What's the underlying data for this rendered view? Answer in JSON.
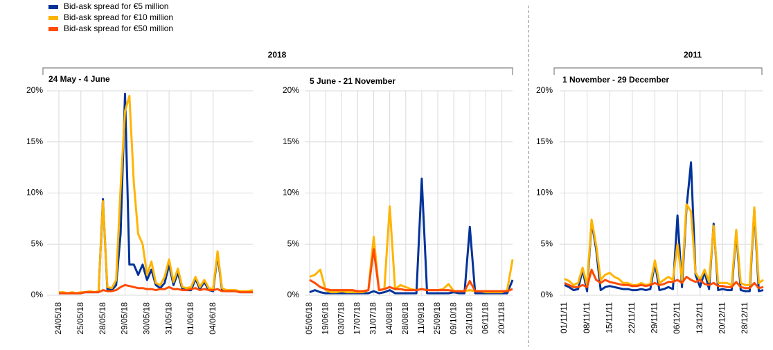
{
  "groups": [
    {
      "label": "2018"
    },
    {
      "label": "2011"
    }
  ],
  "chart_data": [
    {
      "type": "line",
      "title": "24 May - 4 June",
      "categories": [
        "24/05/18",
        null,
        null,
        null,
        null,
        "25/05/18",
        null,
        null,
        null,
        null,
        "28/05/18",
        null,
        null,
        null,
        null,
        "29/05/18",
        null,
        null,
        null,
        null,
        "30/05/18",
        null,
        null,
        null,
        null,
        "31/05/18",
        null,
        null,
        null,
        null,
        "01/06/18",
        null,
        null,
        null,
        null,
        "04/06/18",
        null,
        null,
        null,
        null,
        null,
        null,
        null,
        null,
        null
      ],
      "series": [
        {
          "name": "Bid-ask spread for €5 million",
          "color": "#003299",
          "values": [
            0.2,
            0.2,
            0.2,
            0.2,
            0.2,
            0.2,
            0.3,
            0.3,
            0.3,
            0.3,
            9.4,
            0.6,
            0.5,
            1,
            6,
            19.7,
            3,
            3,
            2,
            3,
            1.5,
            2.5,
            1,
            0.7,
            1.2,
            3,
            1,
            2.2,
            0.6,
            0.5,
            0.5,
            1.6,
            0.6,
            1.3,
            0.5,
            0.4,
            4,
            0.5,
            0.4,
            0.4,
            0.4,
            0.3,
            0.3,
            0.3,
            0.3
          ]
        },
        {
          "name": "Bid-ask spread for €10 million",
          "color": "#ffb400",
          "values": [
            0.3,
            0.3,
            0.2,
            0.3,
            0.2,
            0.3,
            0.3,
            0.4,
            0.3,
            0.4,
            9.2,
            0.8,
            0.7,
            1.5,
            10.5,
            18,
            19.5,
            11,
            6,
            5,
            2,
            3.3,
            1.2,
            1,
            1.8,
            3.5,
            1.3,
            2.6,
            0.8,
            0.7,
            0.8,
            1.8,
            0.8,
            1.5,
            0.7,
            0.6,
            4.3,
            0.7,
            0.5,
            0.5,
            0.5,
            0.4,
            0.4,
            0.4,
            0.5
          ]
        },
        {
          "name": "Bid-ask spread for €50 million",
          "color": "#ff4b00",
          "values": [
            0.2,
            0.2,
            0.2,
            0.2,
            0.2,
            0.2,
            0.3,
            0.3,
            0.3,
            0.3,
            0.5,
            0.4,
            0.4,
            0.5,
            0.8,
            1,
            0.9,
            0.8,
            0.7,
            0.7,
            0.6,
            0.6,
            0.5,
            0.6,
            0.6,
            0.8,
            0.6,
            0.6,
            0.5,
            0.5,
            0.6,
            0.7,
            0.5,
            0.6,
            0.5,
            0.5,
            0.6,
            0.4,
            0.4,
            0.4,
            0.4,
            0.3,
            0.3,
            0.3,
            0.3
          ]
        }
      ],
      "ylim": [
        0,
        20
      ],
      "yticks": [
        {
          "value": 0,
          "label": "0%"
        },
        {
          "value": 5,
          "label": "5%"
        },
        {
          "value": 10,
          "label": "10%"
        },
        {
          "value": 15,
          "label": "15%"
        },
        {
          "value": 20,
          "label": "20%"
        }
      ],
      "grid": true
    },
    {
      "type": "line",
      "title": "5 June - 21 November",
      "categories": [
        "05/06/18",
        null,
        null,
        "19/06/18",
        null,
        null,
        "03/07/18",
        null,
        null,
        "17/07/18",
        null,
        null,
        "31/07/18",
        null,
        null,
        "14/08/18",
        null,
        null,
        "28/08/18",
        null,
        null,
        "11/09/18",
        null,
        null,
        "25/09/18",
        null,
        null,
        "09/10/18",
        null,
        null,
        "23/10/18",
        null,
        null,
        "06/11/18",
        null,
        null,
        "20/11/18",
        null,
        null
      ],
      "series": [
        {
          "color": "#003299",
          "values": [
            0.3,
            0.5,
            0.3,
            0.2,
            0.2,
            0.2,
            0.2,
            0.2,
            0.2,
            0.2,
            0.2,
            0.2,
            0.4,
            0.2,
            0.3,
            0.5,
            0.2,
            0.2,
            0.2,
            0.2,
            0.2,
            11.4,
            0.2,
            0.2,
            0.2,
            0.2,
            0.2,
            0.3,
            0.2,
            0.2,
            6.7,
            0.2,
            0.2,
            0.2,
            0.2,
            0.2,
            0.2,
            0.2,
            1.5
          ]
        },
        {
          "color": "#ffb400",
          "values": [
            1.8,
            2,
            2.5,
            0.5,
            0.3,
            0.3,
            0.4,
            0.3,
            0.3,
            0.3,
            0.3,
            0.5,
            5.7,
            0.5,
            0.6,
            8.7,
            0.6,
            1,
            0.8,
            0.6,
            0.5,
            0.6,
            0.5,
            0.5,
            0.5,
            0.6,
            1.1,
            0.4,
            0.4,
            0.4,
            0.5,
            0.4,
            0.4,
            0.3,
            0.3,
            0.3,
            0.3,
            0.5,
            3.5
          ]
        },
        {
          "color": "#ff4b00",
          "values": [
            1.5,
            1.2,
            0.8,
            0.6,
            0.5,
            0.5,
            0.5,
            0.5,
            0.5,
            0.4,
            0.4,
            0.5,
            4.5,
            0.5,
            0.6,
            0.8,
            0.6,
            0.6,
            0.5,
            0.5,
            0.5,
            0.6,
            0.5,
            0.5,
            0.5,
            0.5,
            0.5,
            0.4,
            0.4,
            0.4,
            1.4,
            0.4,
            0.4,
            0.4,
            0.4,
            0.4,
            0.4,
            0.4,
            0.6
          ]
        }
      ],
      "ylim": [
        0,
        20
      ],
      "yticks": [
        {
          "value": 0,
          "label": "0%"
        },
        {
          "value": 5,
          "label": "5%"
        },
        {
          "value": 10,
          "label": "10%"
        },
        {
          "value": 15,
          "label": "15%"
        },
        {
          "value": 20,
          "label": "20%"
        }
      ],
      "grid": true
    },
    {
      "type": "line",
      "title": "1 November - 29 December",
      "categories": [
        "01/11/11",
        null,
        null,
        null,
        null,
        "08/11/11",
        null,
        null,
        null,
        null,
        "15/11/11",
        null,
        null,
        null,
        null,
        "22/11/11",
        null,
        null,
        null,
        null,
        "29/11/11",
        null,
        null,
        null,
        null,
        "06/12/11",
        null,
        null,
        null,
        null,
        "13/12/11",
        null,
        null,
        null,
        null,
        "20/12/11",
        null,
        null,
        null,
        null,
        "28/12/11",
        null,
        null,
        null,
        null
      ],
      "series": [
        {
          "color": "#003299",
          "values": [
            1,
            0.8,
            0.5,
            0.6,
            2.5,
            0.4,
            7.2,
            4.5,
            0.5,
            0.8,
            0.9,
            0.8,
            0.7,
            0.6,
            0.6,
            0.5,
            0.5,
            0.6,
            0.5,
            0.6,
            3.2,
            0.5,
            0.6,
            0.8,
            0.6,
            7.8,
            0.8,
            8.5,
            13,
            2,
            0.8,
            2.3,
            0.6,
            7,
            0.5,
            0.6,
            0.5,
            0.5,
            6.2,
            0.5,
            0.4,
            0.4,
            8.4,
            0.4,
            0.5
          ]
        },
        {
          "color": "#ffb400",
          "values": [
            1.6,
            1.4,
            1,
            1.2,
            2.7,
            1,
            7.4,
            4.9,
            1.5,
            2,
            2.2,
            1.8,
            1.6,
            1.2,
            1.2,
            1,
            1,
            1.2,
            1,
            1.1,
            3.4,
            1.2,
            1.5,
            1.8,
            1.5,
            5,
            1.5,
            8.9,
            8.2,
            2.2,
            1.5,
            2.5,
            1.3,
            6.8,
            1.2,
            1.2,
            1.2,
            1,
            6.4,
            1.2,
            1,
            1,
            8.6,
            1.2,
            1.5
          ]
        },
        {
          "color": "#ff4b00",
          "values": [
            1.2,
            1,
            0.8,
            0.8,
            1,
            0.8,
            2.5,
            1.5,
            1.2,
            1.5,
            1.3,
            1.2,
            1.1,
            1,
            1,
            0.9,
            0.9,
            1,
            0.9,
            1,
            1.2,
            1,
            1.1,
            1.3,
            1.3,
            1.5,
            1.2,
            1.8,
            1.5,
            1.3,
            1.5,
            1.1,
            1,
            1.2,
            0.9,
            0.9,
            0.8,
            0.8,
            1.3,
            0.8,
            0.7,
            0.7,
            1.2,
            0.7,
            0.8
          ]
        }
      ],
      "ylim": [
        0,
        20
      ],
      "yticks": [
        {
          "value": 0,
          "label": "0%"
        },
        {
          "value": 5,
          "label": "5%"
        },
        {
          "value": 10,
          "label": "10%"
        },
        {
          "value": 15,
          "label": "15%"
        },
        {
          "value": 20,
          "label": "20%"
        }
      ],
      "grid": true
    }
  ]
}
